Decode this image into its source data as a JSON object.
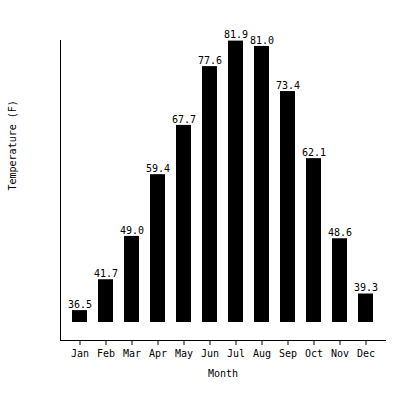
{
  "chart_data": {
    "type": "bar",
    "xlabel": "Month",
    "ylabel": "Temperature (F)",
    "categories": [
      "Jan",
      "Feb",
      "Mar",
      "Apr",
      "May",
      "Jun",
      "Jul",
      "Aug",
      "Sep",
      "Oct",
      "Nov",
      "Dec"
    ],
    "values": [
      36.5,
      41.7,
      49.0,
      59.4,
      67.7,
      77.6,
      81.9,
      81.0,
      73.4,
      62.1,
      48.6,
      39.3
    ],
    "value_labels": [
      "36.5",
      "41.7",
      "49.0",
      "59.4",
      "67.7",
      "77.6",
      "81.9",
      "81.0",
      "73.4",
      "62.1",
      "48.6",
      "39.3"
    ],
    "color": "#000000",
    "ylim": [
      34.5,
      82
    ],
    "yticks": [],
    "grid": false,
    "data_labels": true,
    "tick_labels": "x"
  }
}
